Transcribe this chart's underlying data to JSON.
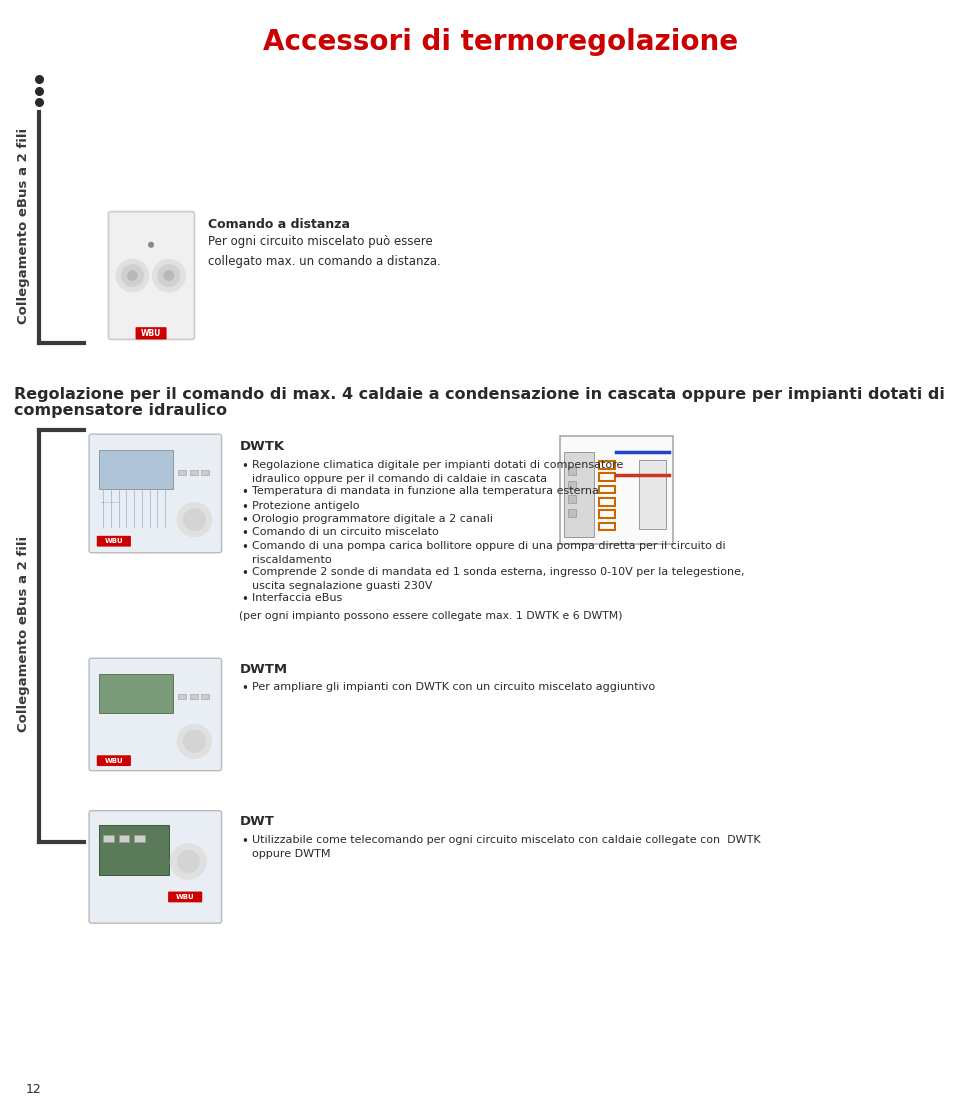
{
  "title": "Accessori di termoregolazione",
  "title_color": "#cc0000",
  "title_fontsize": 20,
  "bg_color": "#ffffff",
  "sidebar_text": "Collegamento eBus a 2 fili",
  "sidebar_color": "#3a3a3a",
  "section1_header_line1": "Regolazione per il comando di max. 4 caldaie a condensazione in cascata oppure per impianti dotati di",
  "section1_header_line2": "compensatore idraulico",
  "section1_header_fontsize": 11.5,
  "remote_title": "Comando a distanza",
  "remote_desc": "Per ogni circuito miscelato può essere\ncollegato max. un comando a distanza.",
  "dwtk_label": "DWTK",
  "dwtk_bullets": [
    "Regolazione climatica digitale per impianti dotati di compensatore\nidraulico oppure per il comando di caldaie in cascata",
    "Temperatura di mandata in funzione alla temperatura esterna",
    "Protezione antigelo",
    "Orologio programmatore digitale a 2 canali",
    "Comando di un circuito miscelato",
    "Comando di una pompa carica bollitore oppure di una pompa diretta per il circuito di\nriscaldamento",
    "Comprende 2 sonde di mandata ed 1 sonda esterna, ingresso 0-10V per la telegestione,\nuscita segnalazione guasti 230V",
    "Interfaccia eBus"
  ],
  "dwtk_note": "(per ogni impianto possono essere collegate max. 1 DWTK e 6 DWTM)",
  "dwtm_label": "DWTM",
  "dwtm_bullets": [
    "Per ampliare gli impianti con DWTK con un circuito miscelato aggiuntivo"
  ],
  "dwt_label": "DWT",
  "dwt_bullets": [
    "Utilizzabile come telecomando per ogni circuito miscelato con caldaie collegate con  DWTK\noppure DWTM"
  ],
  "page_number": "12",
  "text_color": "#2a2a2a",
  "bullet_color": "#2a2a2a",
  "dot_color": "#2a2a2a",
  "bracket_color": "#3a3a3a"
}
